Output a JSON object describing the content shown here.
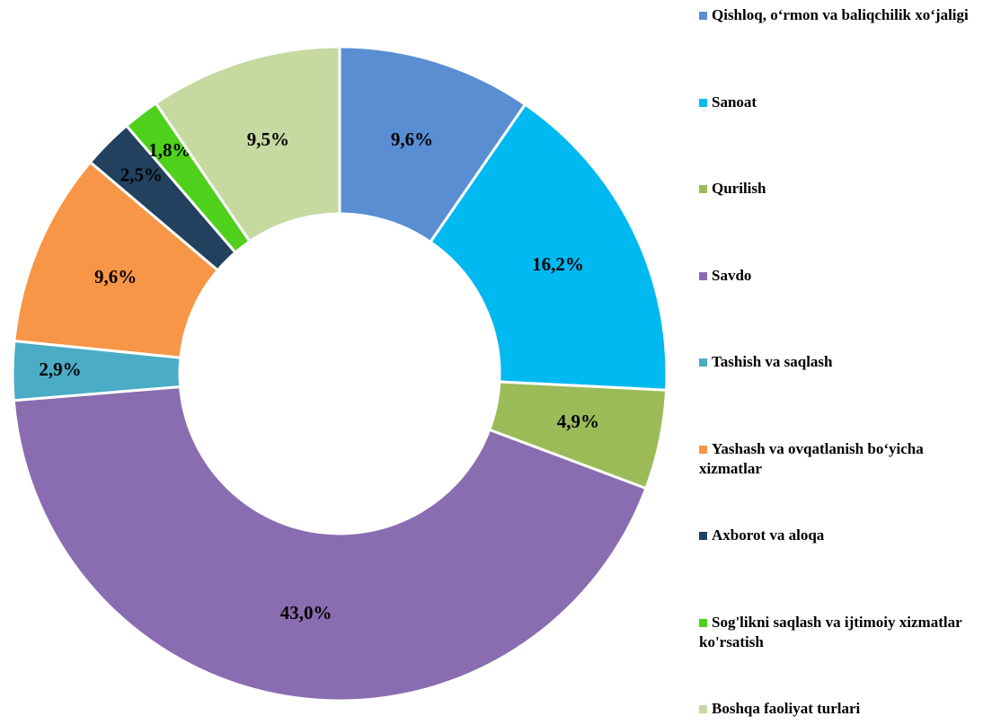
{
  "chart_data": {
    "type": "donut",
    "categories": [
      "Qishloq, o‘rmon va baliqchilik xo‘jaligi",
      "Sanoat",
      "Qurilish",
      "Savdo",
      "Tashish va saqlash",
      "Yashash va ovqatlanish bo‘yicha xizmatlar",
      "Axborot va aloqa",
      "Sog'likni saqlash va ijtimoiy xizmatlar ko'rsatish",
      "Boshqa faoliyat turlari"
    ],
    "values": [
      9.6,
      16.2,
      4.9,
      43.0,
      2.9,
      9.6,
      2.5,
      1.8,
      9.5
    ],
    "value_labels": [
      "9,6%",
      "16,2%",
      "4,9%",
      "43,0%",
      "2,9%",
      "9,6%",
      "2,5%",
      "1,8%",
      "9,5%"
    ],
    "colors": [
      "#5a8ed2",
      "#00b9f1",
      "#9bbb59",
      "#8a6cb0",
      "#4bacc6",
      "#f79646",
      "#22415f",
      "#4fd01c",
      "#c6d9a0"
    ],
    "legend": "right"
  }
}
